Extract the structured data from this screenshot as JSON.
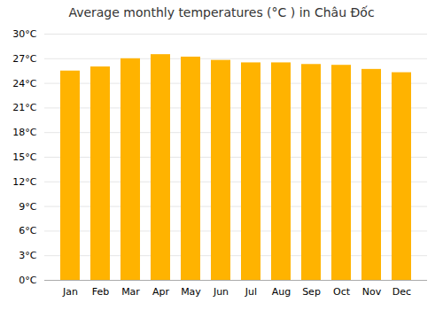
{
  "chart_data": {
    "type": "bar",
    "title": "Average monthly temperatures (°C ) in Châu Đốc",
    "categories": [
      "Jan",
      "Feb",
      "Mar",
      "Apr",
      "May",
      "Jun",
      "Jul",
      "Aug",
      "Sep",
      "Oct",
      "Nov",
      "Dec"
    ],
    "values": [
      25.5,
      26.0,
      27.0,
      27.5,
      27.2,
      26.8,
      26.5,
      26.5,
      26.3,
      26.2,
      25.7,
      25.3
    ],
    "color": "#FFB300",
    "ylim": [
      0,
      30
    ],
    "yticks": [
      {
        "value": 0,
        "label": "0°C"
      },
      {
        "value": 3,
        "label": "3°C"
      },
      {
        "value": 6,
        "label": "6°C"
      },
      {
        "value": 9,
        "label": "9°C"
      },
      {
        "value": 12,
        "label": "12°C"
      },
      {
        "value": 15,
        "label": "15°C"
      },
      {
        "value": 18,
        "label": "18°C"
      },
      {
        "value": 21,
        "label": "21°C"
      },
      {
        "value": 24,
        "label": "24°C"
      },
      {
        "value": 27,
        "label": "27°C"
      },
      {
        "value": 30,
        "label": "30°C"
      }
    ],
    "grid": true
  }
}
